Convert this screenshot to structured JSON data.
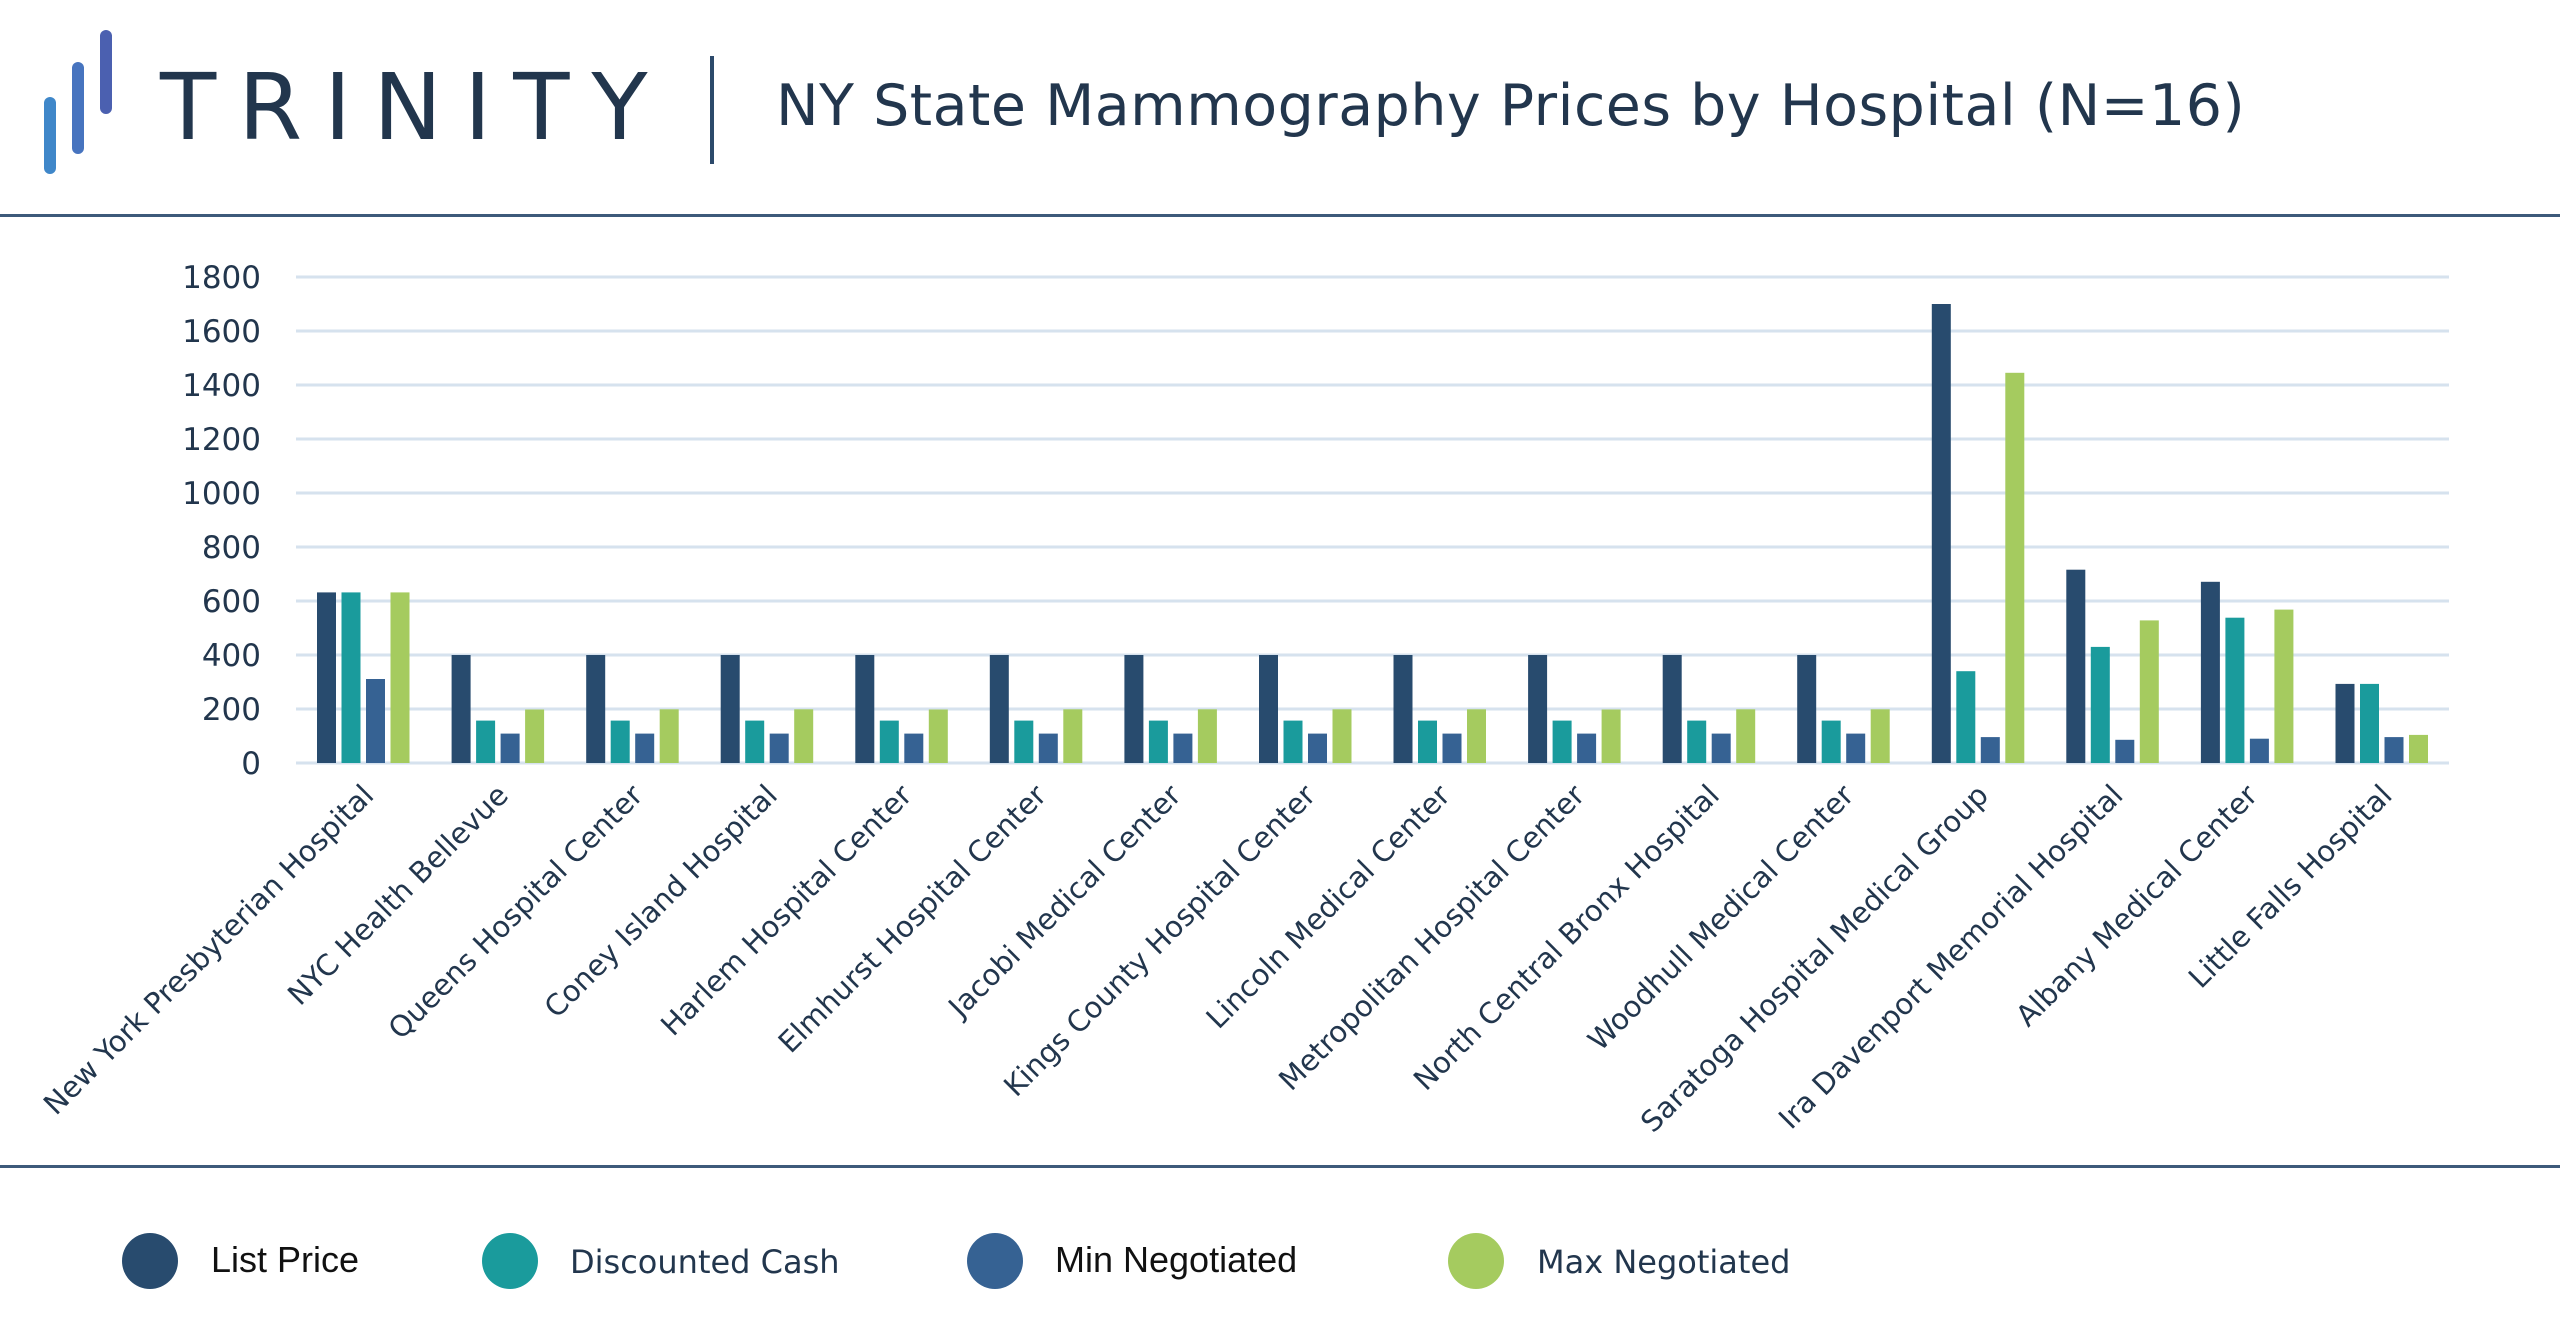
{
  "header": {
    "brand": "TRINITY",
    "title": "NY State Mammography Prices by Hospital (N=16)"
  },
  "colors": {
    "text": "#22364d",
    "grid": "#d6e2ee",
    "logo": [
      "#3f87c9",
      "#4774bf",
      "#4b60b0"
    ]
  },
  "chart_data": {
    "type": "bar",
    "title": "NY State Mammography Prices by Hospital (N=16)",
    "xlabel": "",
    "ylabel": "",
    "ylim": [
      0,
      1800
    ],
    "yticks": [
      "0",
      "200",
      "400",
      "600",
      "800",
      "1000",
      "1200",
      "1400",
      "1600",
      "1800"
    ],
    "grid": true,
    "legend_position": "bottom",
    "categories": [
      "New York Presbyterian Hospital",
      "NYC Health Bellevue",
      "Queens Hospital Center",
      "Coney Island Hospital",
      "Harlem Hospital Center",
      "Elmhurst Hospital Center",
      "Jacobi Medical Center",
      "Kings County Hospital Center",
      "Lincoln Medical Center",
      "Metropolitan Hospital Center",
      "North Central Bronx Hospital",
      "Woodhull Medical Center",
      "Saratoga Hospital Medical Group",
      "Ira Davenport Memorial Hospital",
      "Albany Medical Center",
      "Little Falls Hospital"
    ],
    "series": [
      {
        "name": "List Price",
        "color": "#284b6e",
        "values": [
          632,
          400,
          400,
          400,
          400,
          400,
          400,
          400,
          400,
          400,
          400,
          400,
          1700,
          716,
          671,
          293
        ]
      },
      {
        "name": "Discounted Cash",
        "color": "#1a9b9c",
        "values": [
          632,
          157,
          157,
          157,
          157,
          157,
          157,
          157,
          157,
          157,
          157,
          157,
          340,
          430,
          538,
          293
        ]
      },
      {
        "name": "Min Negotiated",
        "color": "#366293",
        "values": [
          311,
          109,
          109,
          109,
          109,
          109,
          109,
          109,
          109,
          109,
          109,
          109,
          96,
          86,
          90,
          96
        ]
      },
      {
        "name": "Max Negotiated",
        "color": "#a5cb5f",
        "values": [
          632,
          198,
          199,
          199,
          198,
          199,
          199,
          199,
          199,
          198,
          199,
          199,
          1445,
          528,
          568,
          104
        ]
      }
    ]
  },
  "legend": [
    {
      "label": "List Price",
      "color": "#284b6e"
    },
    {
      "label": "Discounted Cash",
      "color": "#1a9b9c"
    },
    {
      "label": "Min Negotiated",
      "color": "#366293"
    },
    {
      "label": "Max Negotiated",
      "color": "#a5cb5f"
    }
  ]
}
